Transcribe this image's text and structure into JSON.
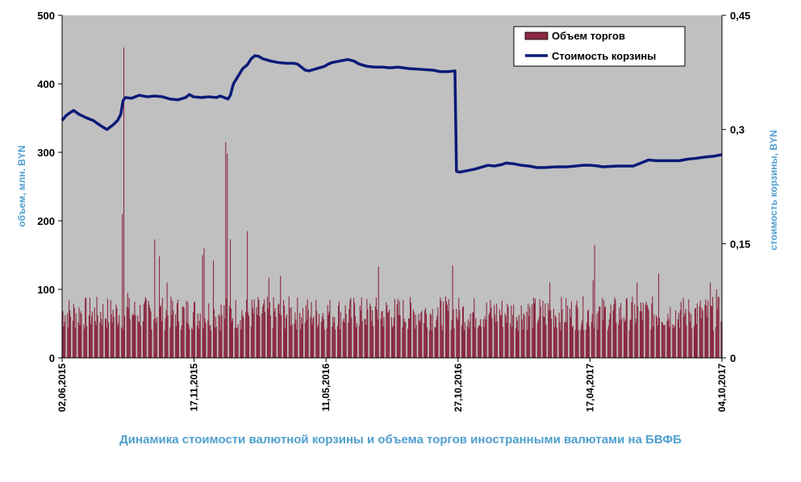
{
  "chart_data": {
    "type": "bar+line",
    "title": "Динамика стоимости валютной корзины и объема торгов иностранными валютами на БВФБ",
    "left_axis": {
      "label": "объем, млн. BYN",
      "ticks": [
        "0",
        "100",
        "200",
        "300",
        "400",
        "500"
      ],
      "range": [
        0,
        500
      ]
    },
    "right_axis": {
      "label": "стоимость корзины, BYN",
      "ticks": [
        "0",
        "0,15",
        "0,3",
        "0,45"
      ],
      "range": [
        0,
        0.45
      ]
    },
    "x_ticks": [
      "02,06,2015",
      "17,11,2015",
      "11,05,2016",
      "27,10,2016",
      "17,04,2017",
      "04,10,2017"
    ],
    "x_range_days": [
      0,
      855
    ],
    "legend": {
      "placement": "top-right"
    },
    "colors": {
      "plot_bg": "#c0c0c0",
      "bar": "#8b2942",
      "line": "#0a1a78"
    },
    "series": [
      {
        "name": "Объем торгов",
        "kind": "bar",
        "axis": "left",
        "spikes": [
          {
            "day": 5,
            "value": 137
          },
          {
            "day": 26,
            "value": 97
          },
          {
            "day": 62,
            "value": 75
          },
          {
            "day": 75,
            "value": 165
          },
          {
            "day": 78,
            "value": 210
          },
          {
            "day": 80,
            "value": 453
          },
          {
            "day": 82,
            "value": 232
          },
          {
            "day": 85,
            "value": 95
          },
          {
            "day": 120,
            "value": 173
          },
          {
            "day": 126,
            "value": 148
          },
          {
            "day": 136,
            "value": 110
          },
          {
            "day": 182,
            "value": 150
          },
          {
            "day": 184,
            "value": 160
          },
          {
            "day": 196,
            "value": 142
          },
          {
            "day": 212,
            "value": 315
          },
          {
            "day": 214,
            "value": 298
          },
          {
            "day": 218,
            "value": 173
          },
          {
            "day": 222,
            "value": 160
          },
          {
            "day": 240,
            "value": 185
          },
          {
            "day": 268,
            "value": 117
          },
          {
            "day": 283,
            "value": 120
          },
          {
            "day": 300,
            "value": 125
          },
          {
            "day": 320,
            "value": 133
          },
          {
            "day": 370,
            "value": 105
          },
          {
            "day": 410,
            "value": 133
          },
          {
            "day": 432,
            "value": 122
          },
          {
            "day": 454,
            "value": 127
          },
          {
            "day": 506,
            "value": 135
          },
          {
            "day": 573,
            "value": 147
          },
          {
            "day": 632,
            "value": 110
          },
          {
            "day": 688,
            "value": 113
          },
          {
            "day": 690,
            "value": 165
          },
          {
            "day": 692,
            "value": 133
          },
          {
            "day": 745,
            "value": 110
          },
          {
            "day": 773,
            "value": 123
          },
          {
            "day": 825,
            "value": 120
          },
          {
            "day": 840,
            "value": 110
          },
          {
            "day": 848,
            "value": 100
          },
          {
            "day": 853,
            "value": 85
          }
        ]
      },
      {
        "name": "Стоимость корзины",
        "kind": "line",
        "axis": "right",
        "points": [
          [
            0,
            0.312
          ],
          [
            5,
            0.318
          ],
          [
            10,
            0.322
          ],
          [
            15,
            0.325
          ],
          [
            22,
            0.32
          ],
          [
            30,
            0.316
          ],
          [
            40,
            0.312
          ],
          [
            50,
            0.305
          ],
          [
            58,
            0.3
          ],
          [
            66,
            0.306
          ],
          [
            72,
            0.312
          ],
          [
            76,
            0.32
          ],
          [
            79,
            0.338
          ],
          [
            82,
            0.342
          ],
          [
            90,
            0.341
          ],
          [
            100,
            0.345
          ],
          [
            110,
            0.343
          ],
          [
            120,
            0.344
          ],
          [
            130,
            0.343
          ],
          [
            140,
            0.34
          ],
          [
            150,
            0.339
          ],
          [
            160,
            0.342
          ],
          [
            165,
            0.346
          ],
          [
            170,
            0.343
          ],
          [
            180,
            0.342
          ],
          [
            190,
            0.343
          ],
          [
            200,
            0.342
          ],
          [
            205,
            0.344
          ],
          [
            210,
            0.342
          ],
          [
            215,
            0.34
          ],
          [
            218,
            0.345
          ],
          [
            222,
            0.36
          ],
          [
            228,
            0.37
          ],
          [
            234,
            0.38
          ],
          [
            240,
            0.385
          ],
          [
            245,
            0.393
          ],
          [
            250,
            0.397
          ],
          [
            255,
            0.396
          ],
          [
            260,
            0.393
          ],
          [
            270,
            0.39
          ],
          [
            280,
            0.388
          ],
          [
            290,
            0.387
          ],
          [
            300,
            0.387
          ],
          [
            305,
            0.386
          ],
          [
            310,
            0.382
          ],
          [
            315,
            0.378
          ],
          [
            320,
            0.377
          ],
          [
            330,
            0.38
          ],
          [
            340,
            0.383
          ],
          [
            345,
            0.386
          ],
          [
            350,
            0.388
          ],
          [
            360,
            0.39
          ],
          [
            370,
            0.392
          ],
          [
            378,
            0.39
          ],
          [
            385,
            0.386
          ],
          [
            395,
            0.383
          ],
          [
            405,
            0.382
          ],
          [
            415,
            0.382
          ],
          [
            425,
            0.381
          ],
          [
            435,
            0.382
          ],
          [
            450,
            0.38
          ],
          [
            465,
            0.379
          ],
          [
            480,
            0.378
          ],
          [
            490,
            0.376
          ],
          [
            500,
            0.376
          ],
          [
            509,
            0.377
          ],
          [
            511,
            0.245
          ],
          [
            515,
            0.244
          ],
          [
            525,
            0.246
          ],
          [
            535,
            0.248
          ],
          [
            545,
            0.251
          ],
          [
            552,
            0.253
          ],
          [
            560,
            0.252
          ],
          [
            570,
            0.254
          ],
          [
            575,
            0.256
          ],
          [
            585,
            0.255
          ],
          [
            595,
            0.253
          ],
          [
            605,
            0.252
          ],
          [
            615,
            0.25
          ],
          [
            625,
            0.25
          ],
          [
            640,
            0.251
          ],
          [
            655,
            0.251
          ],
          [
            665,
            0.252
          ],
          [
            675,
            0.253
          ],
          [
            685,
            0.253
          ],
          [
            695,
            0.252
          ],
          [
            700,
            0.251
          ],
          [
            720,
            0.252
          ],
          [
            740,
            0.252
          ],
          [
            750,
            0.256
          ],
          [
            760,
            0.26
          ],
          [
            770,
            0.259
          ],
          [
            785,
            0.259
          ],
          [
            800,
            0.259
          ],
          [
            810,
            0.261
          ],
          [
            820,
            0.262
          ],
          [
            835,
            0.264
          ],
          [
            845,
            0.265
          ],
          [
            855,
            0.267
          ]
        ]
      }
    ]
  }
}
